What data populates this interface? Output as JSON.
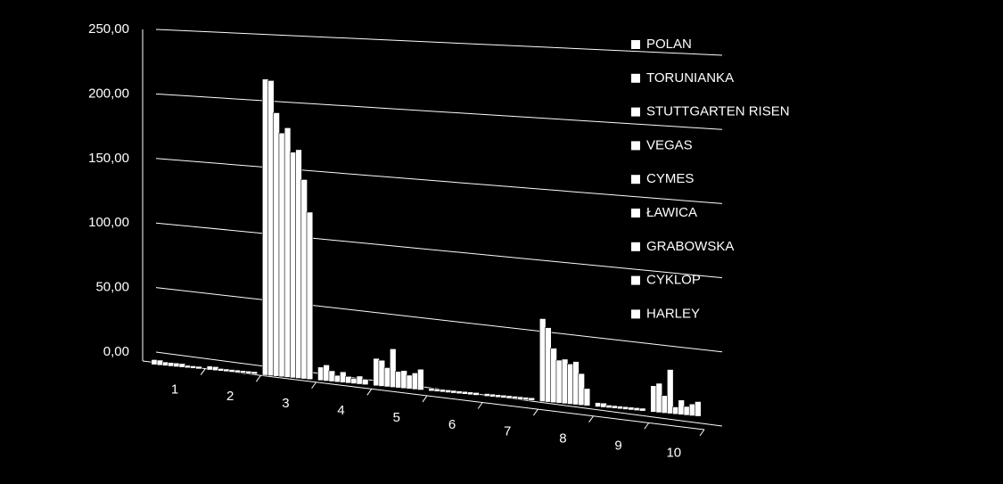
{
  "chart_data": {
    "type": "bar3d",
    "categories": [
      "1",
      "2",
      "3",
      "4",
      "5",
      "6",
      "7",
      "8",
      "9",
      "10"
    ],
    "series": [
      {
        "name": "POLAN",
        "color": "#ffffff",
        "values": [
          4,
          3,
          222,
          10,
          20,
          2,
          2,
          58,
          3,
          18
        ]
      },
      {
        "name": "TORUNIANKA",
        "color": "#ffffff",
        "values": [
          4,
          3,
          221,
          12,
          19,
          2,
          2,
          52,
          3,
          20
        ]
      },
      {
        "name": "STUTTGARTEN RISEN",
        "color": "#ffffff",
        "values": [
          3,
          2,
          197,
          8,
          14,
          2,
          2,
          38,
          2,
          12
        ]
      },
      {
        "name": "VEGAS",
        "color": "#ffffff",
        "values": [
          3,
          2,
          182,
          5,
          28,
          2,
          2,
          30,
          2,
          30
        ]
      },
      {
        "name": "CYMES",
        "color": "#ffffff",
        "values": [
          3,
          2,
          186,
          8,
          12,
          2,
          2,
          31,
          2,
          5
        ]
      },
      {
        "name": "ŁAWICA",
        "color": "#ffffff",
        "values": [
          3,
          2,
          168,
          5,
          13,
          2,
          2,
          28,
          2,
          10
        ]
      },
      {
        "name": "GRABOWSKA",
        "color": "#ffffff",
        "values": [
          2,
          2,
          170,
          4,
          10,
          2,
          2,
          30,
          2,
          6
        ]
      },
      {
        "name": "CYKLOP",
        "color": "#ffffff",
        "values": [
          2,
          2,
          148,
          6,
          12,
          2,
          2,
          22,
          2,
          8
        ]
      },
      {
        "name": "HARLEY",
        "color": "#ffffff",
        "values": [
          2,
          2,
          124,
          4,
          15,
          2,
          2,
          12,
          2,
          10
        ]
      }
    ],
    "ylim": [
      0,
      250
    ],
    "yticks": [
      {
        "value": 0,
        "label": "0,00"
      },
      {
        "value": 50,
        "label": "50,00"
      },
      {
        "value": 100,
        "label": "100,00"
      },
      {
        "value": 150,
        "label": "150,00"
      },
      {
        "value": 200,
        "label": "200,00"
      },
      {
        "value": 250,
        "label": "250,00"
      }
    ],
    "grid": true
  }
}
